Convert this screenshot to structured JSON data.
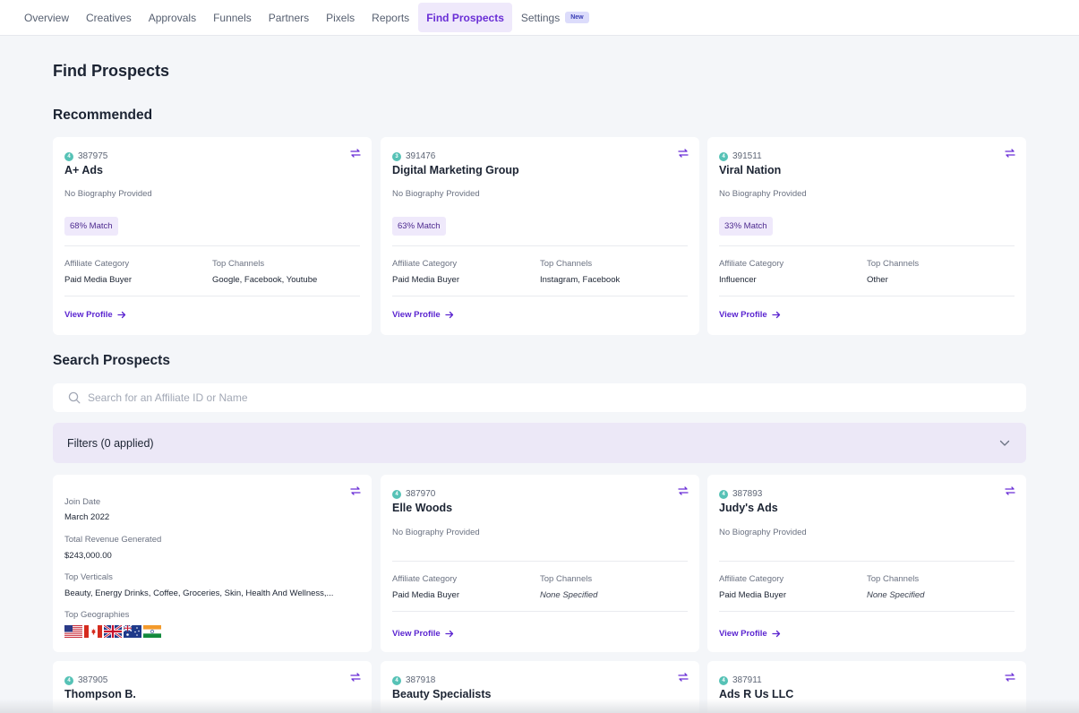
{
  "nav": {
    "items": [
      {
        "label": "Overview"
      },
      {
        "label": "Creatives"
      },
      {
        "label": "Approvals"
      },
      {
        "label": "Funnels"
      },
      {
        "label": "Partners"
      },
      {
        "label": "Pixels"
      },
      {
        "label": "Reports"
      },
      {
        "label": "Find Prospects",
        "active": true
      },
      {
        "label": "Settings"
      }
    ],
    "settings_badge": "New"
  },
  "page": {
    "title": "Find Prospects",
    "recommended_title": "Recommended",
    "search_title": "Search Prospects"
  },
  "recommended": [
    {
      "id": "387975",
      "id_digit": "4",
      "name": "A+ Ads",
      "bio": "No Biography Provided",
      "match": "68% Match",
      "category_label": "Affiliate Category",
      "category": "Paid Media Buyer",
      "channels_label": "Top Channels",
      "channels": "Google, Facebook, Youtube",
      "link": "View Profile"
    },
    {
      "id": "391476",
      "id_digit": "3",
      "name": "Digital Marketing Group",
      "bio": "No Biography Provided",
      "match": "63% Match",
      "category_label": "Affiliate Category",
      "category": "Paid Media Buyer",
      "channels_label": "Top Channels",
      "channels": "Instagram, Facebook",
      "link": "View Profile"
    },
    {
      "id": "391511",
      "id_digit": "4",
      "name": "Viral Nation",
      "bio": "No Biography Provided",
      "match": "33% Match",
      "category_label": "Affiliate Category",
      "category": "Influencer",
      "channels_label": "Top Channels",
      "channels": "Other",
      "link": "View Profile"
    }
  ],
  "search": {
    "placeholder": "Search for an Affiliate ID or Name",
    "value": ""
  },
  "filters": {
    "label": "Filters (0 applied)"
  },
  "details_card": {
    "join_label": "Join Date",
    "join_value": "March 2022",
    "revenue_label": "Total Revenue Generated",
    "revenue_value": "$243,000.00",
    "verticals_label": "Top Verticals",
    "verticals_value": "Beauty, Energy Drinks, Coffee, Groceries, Skin, Health And Wellness,...",
    "geo_label": "Top Geographies",
    "flags": [
      "us-flag-icon",
      "ca-flag-icon",
      "gb-flag-icon",
      "au-flag-icon",
      "in-flag-icon"
    ]
  },
  "results": [
    {
      "id": "387970",
      "id_digit": "4",
      "name": "Elle Woods",
      "bio": "No Biography Provided",
      "category_label": "Affiliate Category",
      "category": "Paid Media Buyer",
      "channels_label": "Top Channels",
      "channels": "None Specified",
      "link": "View Profile"
    },
    {
      "id": "387893",
      "id_digit": "4",
      "name": "Judy's Ads",
      "bio": "No Biography Provided",
      "category_label": "Affiliate Category",
      "category": "Paid Media Buyer",
      "channels_label": "Top Channels",
      "channels": "None Specified",
      "link": "View Profile"
    }
  ],
  "bottom_row": [
    {
      "id": "387905",
      "id_digit": "4",
      "name": "Thompson B."
    },
    {
      "id": "387918",
      "id_digit": "4",
      "name": "Beauty Specialists"
    },
    {
      "id": "387911",
      "id_digit": "4",
      "name": "Ads R Us LLC"
    }
  ],
  "colors": {
    "accent": "#6a2fd6",
    "link": "#5b25d0",
    "id_badge": "#56c2b6",
    "background": "#f4f6f9"
  }
}
